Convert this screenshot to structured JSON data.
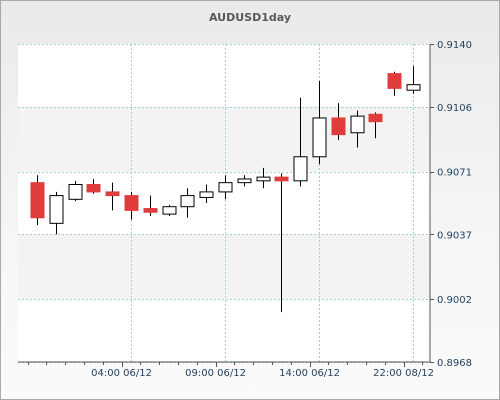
{
  "chart_data": {
    "type": "candlestick",
    "title": "AUDUSD1day",
    "ylim": [
      0.8968,
      0.914
    ],
    "y_ticks": [
      "0.9140",
      "0.9106",
      "0.9071",
      "0.9037",
      "0.9002",
      "0.8968"
    ],
    "x_tick_labels": [
      "04:00 06/12",
      "09:00 06/12",
      "14:00 06/12",
      "22:00 08/12"
    ],
    "x_tick_candle_index": [
      5,
      10,
      15,
      20
    ],
    "grid": true,
    "colors": {
      "up": "#ffffff",
      "down": "#e03c3c",
      "wick": "#000000",
      "grid": "#9fd0dc",
      "axis": "#555555"
    },
    "candles": [
      {
        "open": 0.9065,
        "high": 0.9069,
        "low": 0.9042,
        "close": 0.9046
      },
      {
        "open": 0.9043,
        "high": 0.906,
        "low": 0.9037,
        "close": 0.9058
      },
      {
        "open": 0.9056,
        "high": 0.9066,
        "low": 0.9055,
        "close": 0.9064
      },
      {
        "open": 0.9064,
        "high": 0.9067,
        "low": 0.9059,
        "close": 0.906
      },
      {
        "open": 0.906,
        "high": 0.9065,
        "low": 0.905,
        "close": 0.9058
      },
      {
        "open": 0.9058,
        "high": 0.906,
        "low": 0.9045,
        "close": 0.905
      },
      {
        "open": 0.9051,
        "high": 0.9058,
        "low": 0.9047,
        "close": 0.9049
      },
      {
        "open": 0.9048,
        "high": 0.9053,
        "low": 0.9047,
        "close": 0.9052
      },
      {
        "open": 0.9052,
        "high": 0.9062,
        "low": 0.9046,
        "close": 0.9058
      },
      {
        "open": 0.9057,
        "high": 0.9064,
        "low": 0.9054,
        "close": 0.906
      },
      {
        "open": 0.906,
        "high": 0.9069,
        "low": 0.9056,
        "close": 0.9065
      },
      {
        "open": 0.9065,
        "high": 0.9069,
        "low": 0.9063,
        "close": 0.9067
      },
      {
        "open": 0.9066,
        "high": 0.9073,
        "low": 0.9062,
        "close": 0.9068
      },
      {
        "open": 0.9068,
        "high": 0.907,
        "low": 0.8995,
        "close": 0.9066
      },
      {
        "open": 0.9066,
        "high": 0.9111,
        "low": 0.9063,
        "close": 0.9079
      },
      {
        "open": 0.9079,
        "high": 0.912,
        "low": 0.9075,
        "close": 0.91
      },
      {
        "open": 0.91,
        "high": 0.9108,
        "low": 0.9088,
        "close": 0.9091
      },
      {
        "open": 0.9092,
        "high": 0.9104,
        "low": 0.9084,
        "close": 0.9101
      },
      {
        "open": 0.9102,
        "high": 0.9103,
        "low": 0.9089,
        "close": 0.9098
      },
      {
        "open": 0.9124,
        "high": 0.9125,
        "low": 0.9112,
        "close": 0.9116
      },
      {
        "open": 0.9115,
        "high": 0.9128,
        "low": 0.9113,
        "close": 0.9118
      }
    ]
  }
}
